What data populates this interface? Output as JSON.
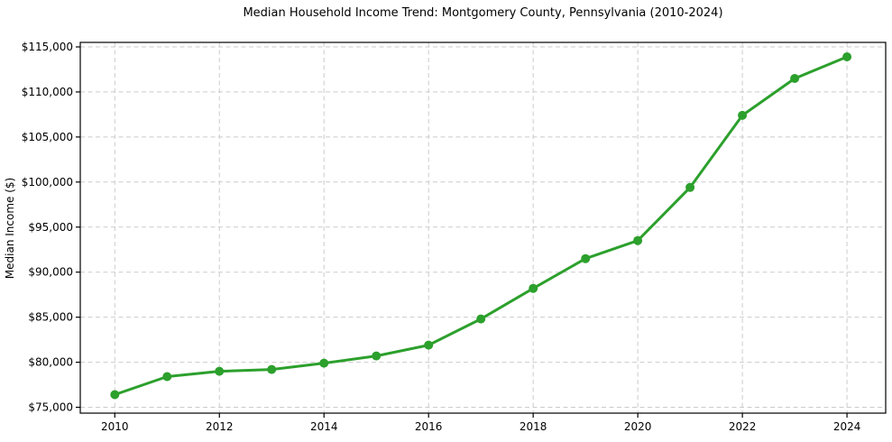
{
  "chart_data": {
    "type": "line",
    "title": "Median Household Income Trend: Montgomery County, Pennsylvania (2010-2024)",
    "xlabel": "",
    "ylabel": "Median Income ($)",
    "x": [
      2010,
      2011,
      2012,
      2013,
      2014,
      2015,
      2016,
      2017,
      2018,
      2019,
      2020,
      2021,
      2022,
      2023,
      2024
    ],
    "y": [
      76400,
      78400,
      79000,
      79200,
      79900,
      80700,
      81900,
      84800,
      88200,
      91500,
      93500,
      99400,
      107400,
      111500,
      113900
    ],
    "xticks": [
      2010,
      2012,
      2014,
      2016,
      2018,
      2020,
      2022,
      2024
    ],
    "xtick_labels": [
      "2010",
      "2012",
      "2014",
      "2016",
      "2018",
      "2020",
      "2022",
      "2024"
    ],
    "yticks": [
      75000,
      80000,
      85000,
      90000,
      95000,
      100000,
      105000,
      110000,
      115000
    ],
    "ytick_labels": [
      "$75,000",
      "$80,000",
      "$85,000",
      "$90,000",
      "$95,000",
      "$100,000",
      "$105,000",
      "$110,000",
      "$115,000"
    ],
    "xlim": [
      2009.34,
      2024.74
    ],
    "ylim": [
      74350,
      115500
    ],
    "grid": true,
    "grid_style": "dashed",
    "legend": "none",
    "line_color": "#2ca02c",
    "marker": "circle",
    "marker_size": 5,
    "line_width": 3
  }
}
